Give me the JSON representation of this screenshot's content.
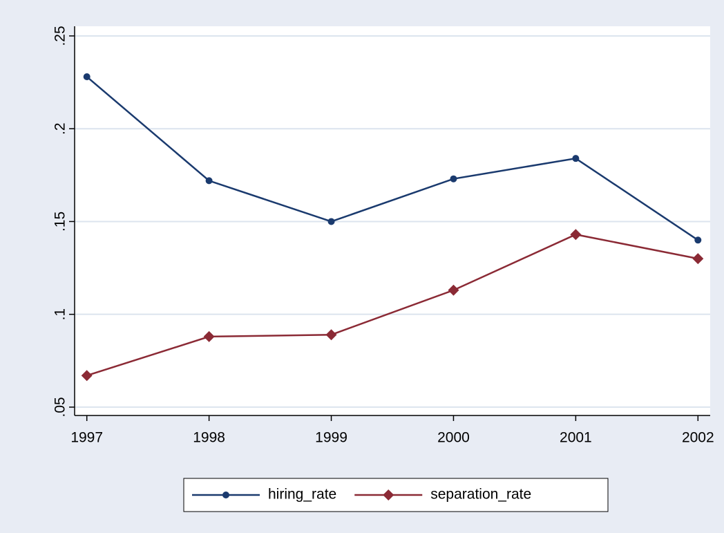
{
  "chart_data": {
    "type": "line",
    "x": [
      1997,
      1998,
      1999,
      2000,
      2001,
      2002
    ],
    "series": [
      {
        "name": "hiring_rate",
        "color": "#1a3a6e",
        "marker": "circle",
        "values": [
          0.228,
          0.172,
          0.15,
          0.173,
          0.184,
          0.14
        ]
      },
      {
        "name": "separation_rate",
        "color": "#8b2a35",
        "marker": "diamond",
        "values": [
          0.067,
          0.088,
          0.089,
          0.113,
          0.143,
          0.13
        ]
      }
    ],
    "xlim": [
      1996.9,
      2002.1
    ],
    "xticks": [
      1997,
      1998,
      1999,
      2000,
      2001,
      2002
    ],
    "ylim": [
      0.0455,
      0.2552
    ],
    "yticks": [
      {
        "value": 0.05,
        "label": ".05"
      },
      {
        "value": 0.1,
        "label": ".1"
      },
      {
        "value": 0.15,
        "label": ".15"
      },
      {
        "value": 0.2,
        "label": ".2"
      },
      {
        "value": 0.25,
        "label": ".25"
      }
    ],
    "grid": true,
    "legend": "bottom"
  }
}
